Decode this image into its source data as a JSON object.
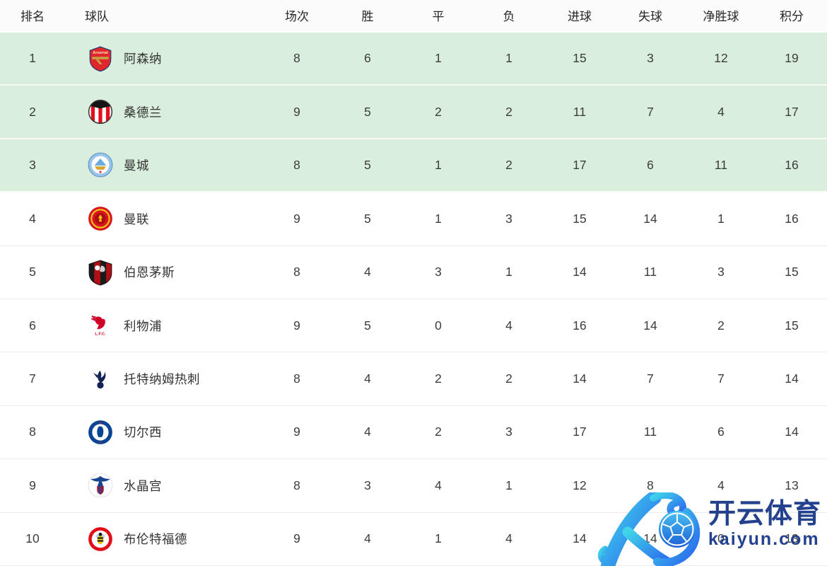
{
  "page": {
    "background": "#ffffff"
  },
  "table": {
    "columns": [
      "排名",
      "球队",
      "场次",
      "胜",
      "平",
      "负",
      "进球",
      "失球",
      "净胜球",
      "积分"
    ],
    "highlight_row_color": "#d9eedd",
    "rows": [
      {
        "rank": "1",
        "team": "阿森纳",
        "logo": "arsenal-crest-icon",
        "played": "8",
        "win": "6",
        "draw": "1",
        "loss": "1",
        "gf": "15",
        "ga": "3",
        "gd": "12",
        "pts": "19",
        "highlighted": true
      },
      {
        "rank": "2",
        "team": "桑德兰",
        "logo": "sunderland-crest-icon",
        "played": "9",
        "win": "5",
        "draw": "2",
        "loss": "2",
        "gf": "11",
        "ga": "7",
        "gd": "4",
        "pts": "17",
        "highlighted": true
      },
      {
        "rank": "3",
        "team": "曼城",
        "logo": "mancity-crest-icon",
        "played": "8",
        "win": "5",
        "draw": "1",
        "loss": "2",
        "gf": "17",
        "ga": "6",
        "gd": "11",
        "pts": "16",
        "highlighted": true
      },
      {
        "rank": "4",
        "team": "曼联",
        "logo": "manutd-crest-icon",
        "played": "9",
        "win": "5",
        "draw": "1",
        "loss": "3",
        "gf": "15",
        "ga": "14",
        "gd": "1",
        "pts": "16",
        "highlighted": false
      },
      {
        "rank": "5",
        "team": "伯恩茅斯",
        "logo": "bournemouth-crest-icon",
        "played": "8",
        "win": "4",
        "draw": "3",
        "loss": "1",
        "gf": "14",
        "ga": "11",
        "gd": "3",
        "pts": "15",
        "highlighted": false
      },
      {
        "rank": "6",
        "team": "利物浦",
        "logo": "liverpool-crest-icon",
        "played": "9",
        "win": "5",
        "draw": "0",
        "loss": "4",
        "gf": "16",
        "ga": "14",
        "gd": "2",
        "pts": "15",
        "highlighted": false
      },
      {
        "rank": "7",
        "team": "托特纳姆热刺",
        "logo": "tottenham-crest-icon",
        "played": "8",
        "win": "4",
        "draw": "2",
        "loss": "2",
        "gf": "14",
        "ga": "7",
        "gd": "7",
        "pts": "14",
        "highlighted": false
      },
      {
        "rank": "8",
        "team": "切尔西",
        "logo": "chelsea-crest-icon",
        "played": "9",
        "win": "4",
        "draw": "2",
        "loss": "3",
        "gf": "17",
        "ga": "11",
        "gd": "6",
        "pts": "14",
        "highlighted": false
      },
      {
        "rank": "9",
        "team": "水晶宫",
        "logo": "crystalpalace-crest-icon",
        "played": "8",
        "win": "3",
        "draw": "4",
        "loss": "1",
        "gf": "12",
        "ga": "8",
        "gd": "4",
        "pts": "13",
        "highlighted": false
      },
      {
        "rank": "10",
        "team": "布伦特福德",
        "logo": "brentford-crest-icon",
        "played": "9",
        "win": "4",
        "draw": "1",
        "loss": "4",
        "gf": "14",
        "ga": "14",
        "gd": "0",
        "pts": "13",
        "highlighted": false
      }
    ]
  },
  "watermark": {
    "brand": "开云体育",
    "domain": "kaiyun.com",
    "text_color": "#24418e",
    "logo_gradient_start": "#3fd4ea",
    "logo_gradient_end": "#2b63ee"
  }
}
